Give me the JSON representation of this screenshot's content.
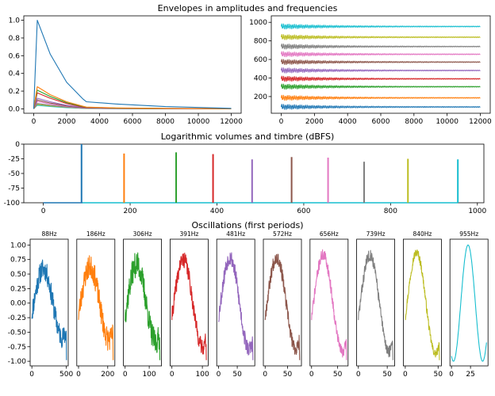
{
  "palette": [
    "#1f77b4",
    "#ff7f0e",
    "#2ca02c",
    "#d62728",
    "#9467bd",
    "#8c564b",
    "#e377c2",
    "#7f7f7f",
    "#bcbd22",
    "#17becf"
  ],
  "chart_data": [
    {
      "id": "amplitude-envelopes",
      "type": "line",
      "title": "Envelopes in amplitudes and frequencies",
      "xlim": [
        -600,
        12600
      ],
      "ylim": [
        -0.05,
        1.05
      ],
      "xticks": [
        0,
        2000,
        4000,
        6000,
        8000,
        10000,
        12000
      ],
      "yticks": [
        0.0,
        0.2,
        0.4,
        0.6,
        0.8,
        1.0
      ],
      "ytick_labels": [
        "0.0",
        "0.2",
        "0.4",
        "0.6",
        "0.8",
        "1.0"
      ],
      "series": [
        {
          "name": "88Hz",
          "x": [
            0,
            220,
            1000,
            2000,
            3000,
            3200,
            5000,
            8000,
            12000
          ],
          "y": [
            0,
            1.0,
            0.62,
            0.3,
            0.11,
            0.08,
            0.055,
            0.025,
            0.005
          ]
        },
        {
          "name": "186Hz",
          "x": [
            0,
            220,
            1000,
            2000,
            3000,
            3200,
            5000,
            8000,
            12000
          ],
          "y": [
            0,
            0.25,
            0.16,
            0.08,
            0.03,
            0.02,
            0.01,
            0.005,
            0.002
          ]
        },
        {
          "name": "306Hz",
          "x": [
            0,
            220,
            1000,
            2000,
            3000,
            3200,
            5000,
            8000,
            12000
          ],
          "y": [
            0,
            0.21,
            0.14,
            0.07,
            0.025,
            0.018,
            0.009,
            0.004,
            0.002
          ]
        },
        {
          "name": "391Hz",
          "x": [
            0,
            220,
            1000,
            2000,
            3000,
            3200,
            5000,
            8000,
            12000
          ],
          "y": [
            0,
            0.18,
            0.12,
            0.06,
            0.02,
            0.015,
            0.008,
            0.004,
            0.002
          ]
        },
        {
          "name": "481Hz",
          "x": [
            0,
            220,
            1000,
            2000,
            3000,
            3200,
            5000,
            8000,
            12000
          ],
          "y": [
            0,
            0.12,
            0.08,
            0.04,
            0.015,
            0.011,
            0.006,
            0.003,
            0.001
          ]
        },
        {
          "name": "572Hz",
          "x": [
            0,
            220,
            1000,
            2000,
            3000,
            3200,
            5000,
            8000,
            12000
          ],
          "y": [
            0,
            0.1,
            0.065,
            0.033,
            0.012,
            0.009,
            0.005,
            0.002,
            0.001
          ]
        },
        {
          "name": "656Hz",
          "x": [
            0,
            220,
            1000,
            2000,
            3000,
            3200,
            5000,
            8000,
            12000
          ],
          "y": [
            0,
            0.085,
            0.055,
            0.028,
            0.01,
            0.008,
            0.004,
            0.002,
            0.001
          ]
        },
        {
          "name": "739Hz",
          "x": [
            0,
            220,
            1000,
            2000,
            3000,
            3200,
            5000,
            8000,
            12000
          ],
          "y": [
            0,
            0.06,
            0.04,
            0.02,
            0.008,
            0.006,
            0.003,
            0.002,
            0.001
          ]
        },
        {
          "name": "840Hz",
          "x": [
            0,
            220,
            1000,
            2000,
            3000,
            3200,
            5000,
            8000,
            12000
          ],
          "y": [
            0,
            0.05,
            0.033,
            0.017,
            0.007,
            0.005,
            0.003,
            0.001,
            0.001
          ]
        },
        {
          "name": "955Hz",
          "x": [
            0,
            220,
            1000,
            2000,
            3000,
            3200,
            5000,
            8000,
            12000
          ],
          "y": [
            0,
            0.04,
            0.026,
            0.013,
            0.005,
            0.004,
            0.002,
            0.001,
            0.0005
          ]
        }
      ]
    },
    {
      "id": "frequency-envelopes",
      "type": "line",
      "title": "",
      "xlim": [
        -600,
        12600
      ],
      "ylim": [
        20,
        1070
      ],
      "xticks": [
        0,
        2000,
        4000,
        6000,
        8000,
        10000,
        12000
      ],
      "yticks": [
        200,
        400,
        600,
        800,
        1000
      ],
      "ytick_labels": [
        "200",
        "400",
        "600",
        "800",
        "1000"
      ],
      "x_end": 12000,
      "series": [
        {
          "name": "88Hz",
          "center": 88,
          "spread_start": 30,
          "spread_end": 4
        },
        {
          "name": "186Hz",
          "center": 186,
          "spread_start": 30,
          "spread_end": 4
        },
        {
          "name": "306Hz",
          "center": 306,
          "spread_start": 30,
          "spread_end": 4
        },
        {
          "name": "391Hz",
          "center": 391,
          "spread_start": 30,
          "spread_end": 4
        },
        {
          "name": "481Hz",
          "center": 481,
          "spread_start": 30,
          "spread_end": 4
        },
        {
          "name": "572Hz",
          "center": 572,
          "spread_start": 30,
          "spread_end": 4
        },
        {
          "name": "656Hz",
          "center": 656,
          "spread_start": 30,
          "spread_end": 4
        },
        {
          "name": "739Hz",
          "center": 739,
          "spread_start": 30,
          "spread_end": 4
        },
        {
          "name": "840Hz",
          "center": 840,
          "spread_start": 30,
          "spread_end": 4
        },
        {
          "name": "955Hz",
          "center": 955,
          "spread_start": 30,
          "spread_end": 4
        }
      ]
    },
    {
      "id": "volumes-timbre",
      "type": "bar",
      "title": "Logarithmic volumes and timbre (dBFS)",
      "xlim": [
        -45,
        1015
      ],
      "ylim": [
        -100,
        0
      ],
      "xticks": [
        0,
        200,
        400,
        600,
        800,
        1000
      ],
      "yticks": [
        0,
        -25,
        -50,
        -75,
        -100
      ],
      "ytick_labels": [
        "0",
        "-25",
        "-50",
        "-75",
        "-100"
      ],
      "baseline": [
        [
          0,
          90
        ],
        [
          90,
          955
        ]
      ],
      "frequencies": [
        88,
        186,
        306,
        391,
        481,
        572,
        656,
        739,
        840,
        955
      ],
      "values": [
        0,
        -16,
        -14,
        -17,
        -26,
        -22,
        -23,
        -30,
        -25,
        -26
      ]
    },
    {
      "id": "oscillations",
      "type": "line",
      "title": "Oscillations (first periods)",
      "ylim": [
        -1.08,
        1.1
      ],
      "yticks": [
        1.0,
        0.75,
        0.5,
        0.25,
        0.0,
        -0.25,
        -0.5,
        -0.75,
        -1.0
      ],
      "ytick_labels": [
        "1.00",
        "0.75",
        "0.50",
        "0.25",
        "0.00",
        "-0.25",
        "-0.50",
        "-0.75",
        "-1.00"
      ],
      "panels": [
        {
          "title": "88Hz",
          "xmax": 502,
          "xlim": [
            -25,
            527
          ],
          "xticks": [
            0,
            500
          ],
          "noise": 0.18,
          "bend": 0.9,
          "seed": 11
        },
        {
          "title": "186Hz",
          "xmax": 237,
          "xlim": [
            -12,
            249
          ],
          "xticks": [
            0,
            200
          ],
          "noise": 0.2,
          "bend": 0.8,
          "seed": 23
        },
        {
          "title": "306Hz",
          "xmax": 144,
          "xlim": [
            -7,
            151
          ],
          "xticks": [
            0,
            100
          ],
          "noise": 0.22,
          "bend": 0.7,
          "seed": 37
        },
        {
          "title": "391Hz",
          "xmax": 113,
          "xlim": [
            -6,
            119
          ],
          "xticks": [
            0,
            100
          ],
          "noise": 0.14,
          "bend": 0.5,
          "seed": 41
        },
        {
          "title": "481Hz",
          "xmax": 92,
          "xlim": [
            -5,
            97
          ],
          "xticks": [
            0,
            50
          ],
          "noise": 0.14,
          "bend": 0.4,
          "seed": 53
        },
        {
          "title": "572Hz",
          "xmax": 77,
          "xlim": [
            -4,
            81
          ],
          "xticks": [
            0,
            50
          ],
          "noise": 0.12,
          "bend": 0.4,
          "seed": 67
        },
        {
          "title": "656Hz",
          "xmax": 67,
          "xlim": [
            -3,
            70
          ],
          "xticks": [
            0,
            50
          ],
          "noise": 0.1,
          "bend": 0.3,
          "seed": 71
        },
        {
          "title": "739Hz",
          "xmax": 60,
          "xlim": [
            -3,
            63
          ],
          "xticks": [
            0,
            50
          ],
          "noise": 0.1,
          "bend": 0.3,
          "seed": 83
        },
        {
          "title": "840Hz",
          "xmax": 52,
          "xlim": [
            -3,
            55
          ],
          "xticks": [
            0,
            50
          ],
          "noise": 0.07,
          "bend": 0.2,
          "seed": 97
        },
        {
          "title": "955Hz",
          "xmax": 46,
          "xlim": [
            -2,
            48
          ],
          "xticks": [
            0,
            25
          ],
          "noise": 0.0,
          "bend": 0.0,
          "seed": 101
        }
      ]
    }
  ]
}
